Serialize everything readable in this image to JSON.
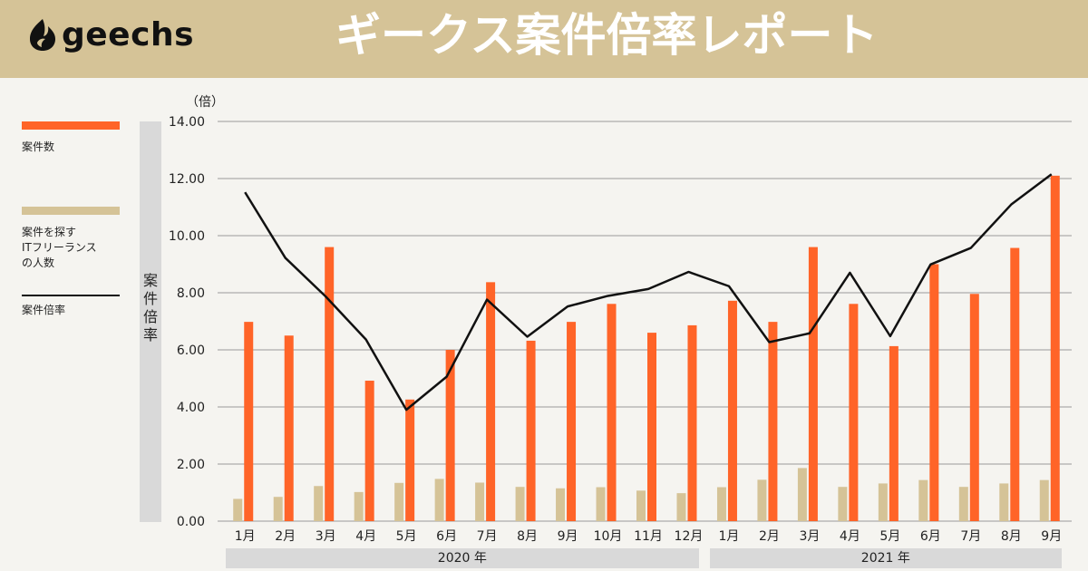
{
  "header": {
    "logo_text": "geechs",
    "title": "ギークス案件倍率レポート"
  },
  "legend": [
    {
      "label": "案件数",
      "color": "#ff6428"
    },
    {
      "label": "案件を探す\nITフリーランス\nの人数",
      "color": "#d5c397"
    },
    {
      "label": "案件倍率",
      "color": "#111111"
    }
  ],
  "chart_data": {
    "type": "bar",
    "title": "",
    "ylabel": "案件倍率",
    "yunit": "（倍）",
    "ylim": [
      0,
      14
    ],
    "yticks": [
      "0.00",
      "2.00",
      "4.00",
      "6.00",
      "8.00",
      "10.00",
      "12.00",
      "14.00"
    ],
    "grid": true,
    "legend_position": "left",
    "categories": [
      "1月",
      "2月",
      "3月",
      "4月",
      "5月",
      "6月",
      "7月",
      "8月",
      "9月",
      "10月",
      "11月",
      "12月",
      "1月",
      "2月",
      "3月",
      "4月",
      "5月",
      "6月",
      "7月",
      "8月",
      "9月"
    ],
    "year_groups": [
      {
        "label": "2020 年",
        "count": 12
      },
      {
        "label": "2021 年",
        "count": 9
      }
    ],
    "series": [
      {
        "name": "案件数",
        "kind": "bar",
        "color": "#ff6428",
        "values": [
          6.98,
          6.5,
          9.6,
          4.92,
          4.26,
          6.0,
          8.37,
          6.32,
          6.98,
          7.61,
          6.6,
          6.86,
          7.72,
          6.98,
          9.6,
          7.61,
          6.13,
          9.0,
          7.96,
          9.57,
          12.1
        ]
      },
      {
        "name": "案件を探すITフリーランスの人数",
        "kind": "bar",
        "color": "#d5c397",
        "values": [
          0.78,
          0.85,
          1.23,
          1.02,
          1.34,
          1.48,
          1.35,
          1.2,
          1.15,
          1.19,
          1.07,
          0.98,
          1.19,
          1.45,
          1.86,
          1.2,
          1.32,
          1.44,
          1.2,
          1.32,
          1.44
        ]
      },
      {
        "name": "案件倍率",
        "kind": "line",
        "color": "#111111",
        "values": [
          11.52,
          9.22,
          7.87,
          6.36,
          3.9,
          5.06,
          7.76,
          6.46,
          7.52,
          7.89,
          8.13,
          8.73,
          8.23,
          6.27,
          6.58,
          8.7,
          6.48,
          8.99,
          9.57,
          11.09,
          12.15
        ]
      }
    ]
  }
}
